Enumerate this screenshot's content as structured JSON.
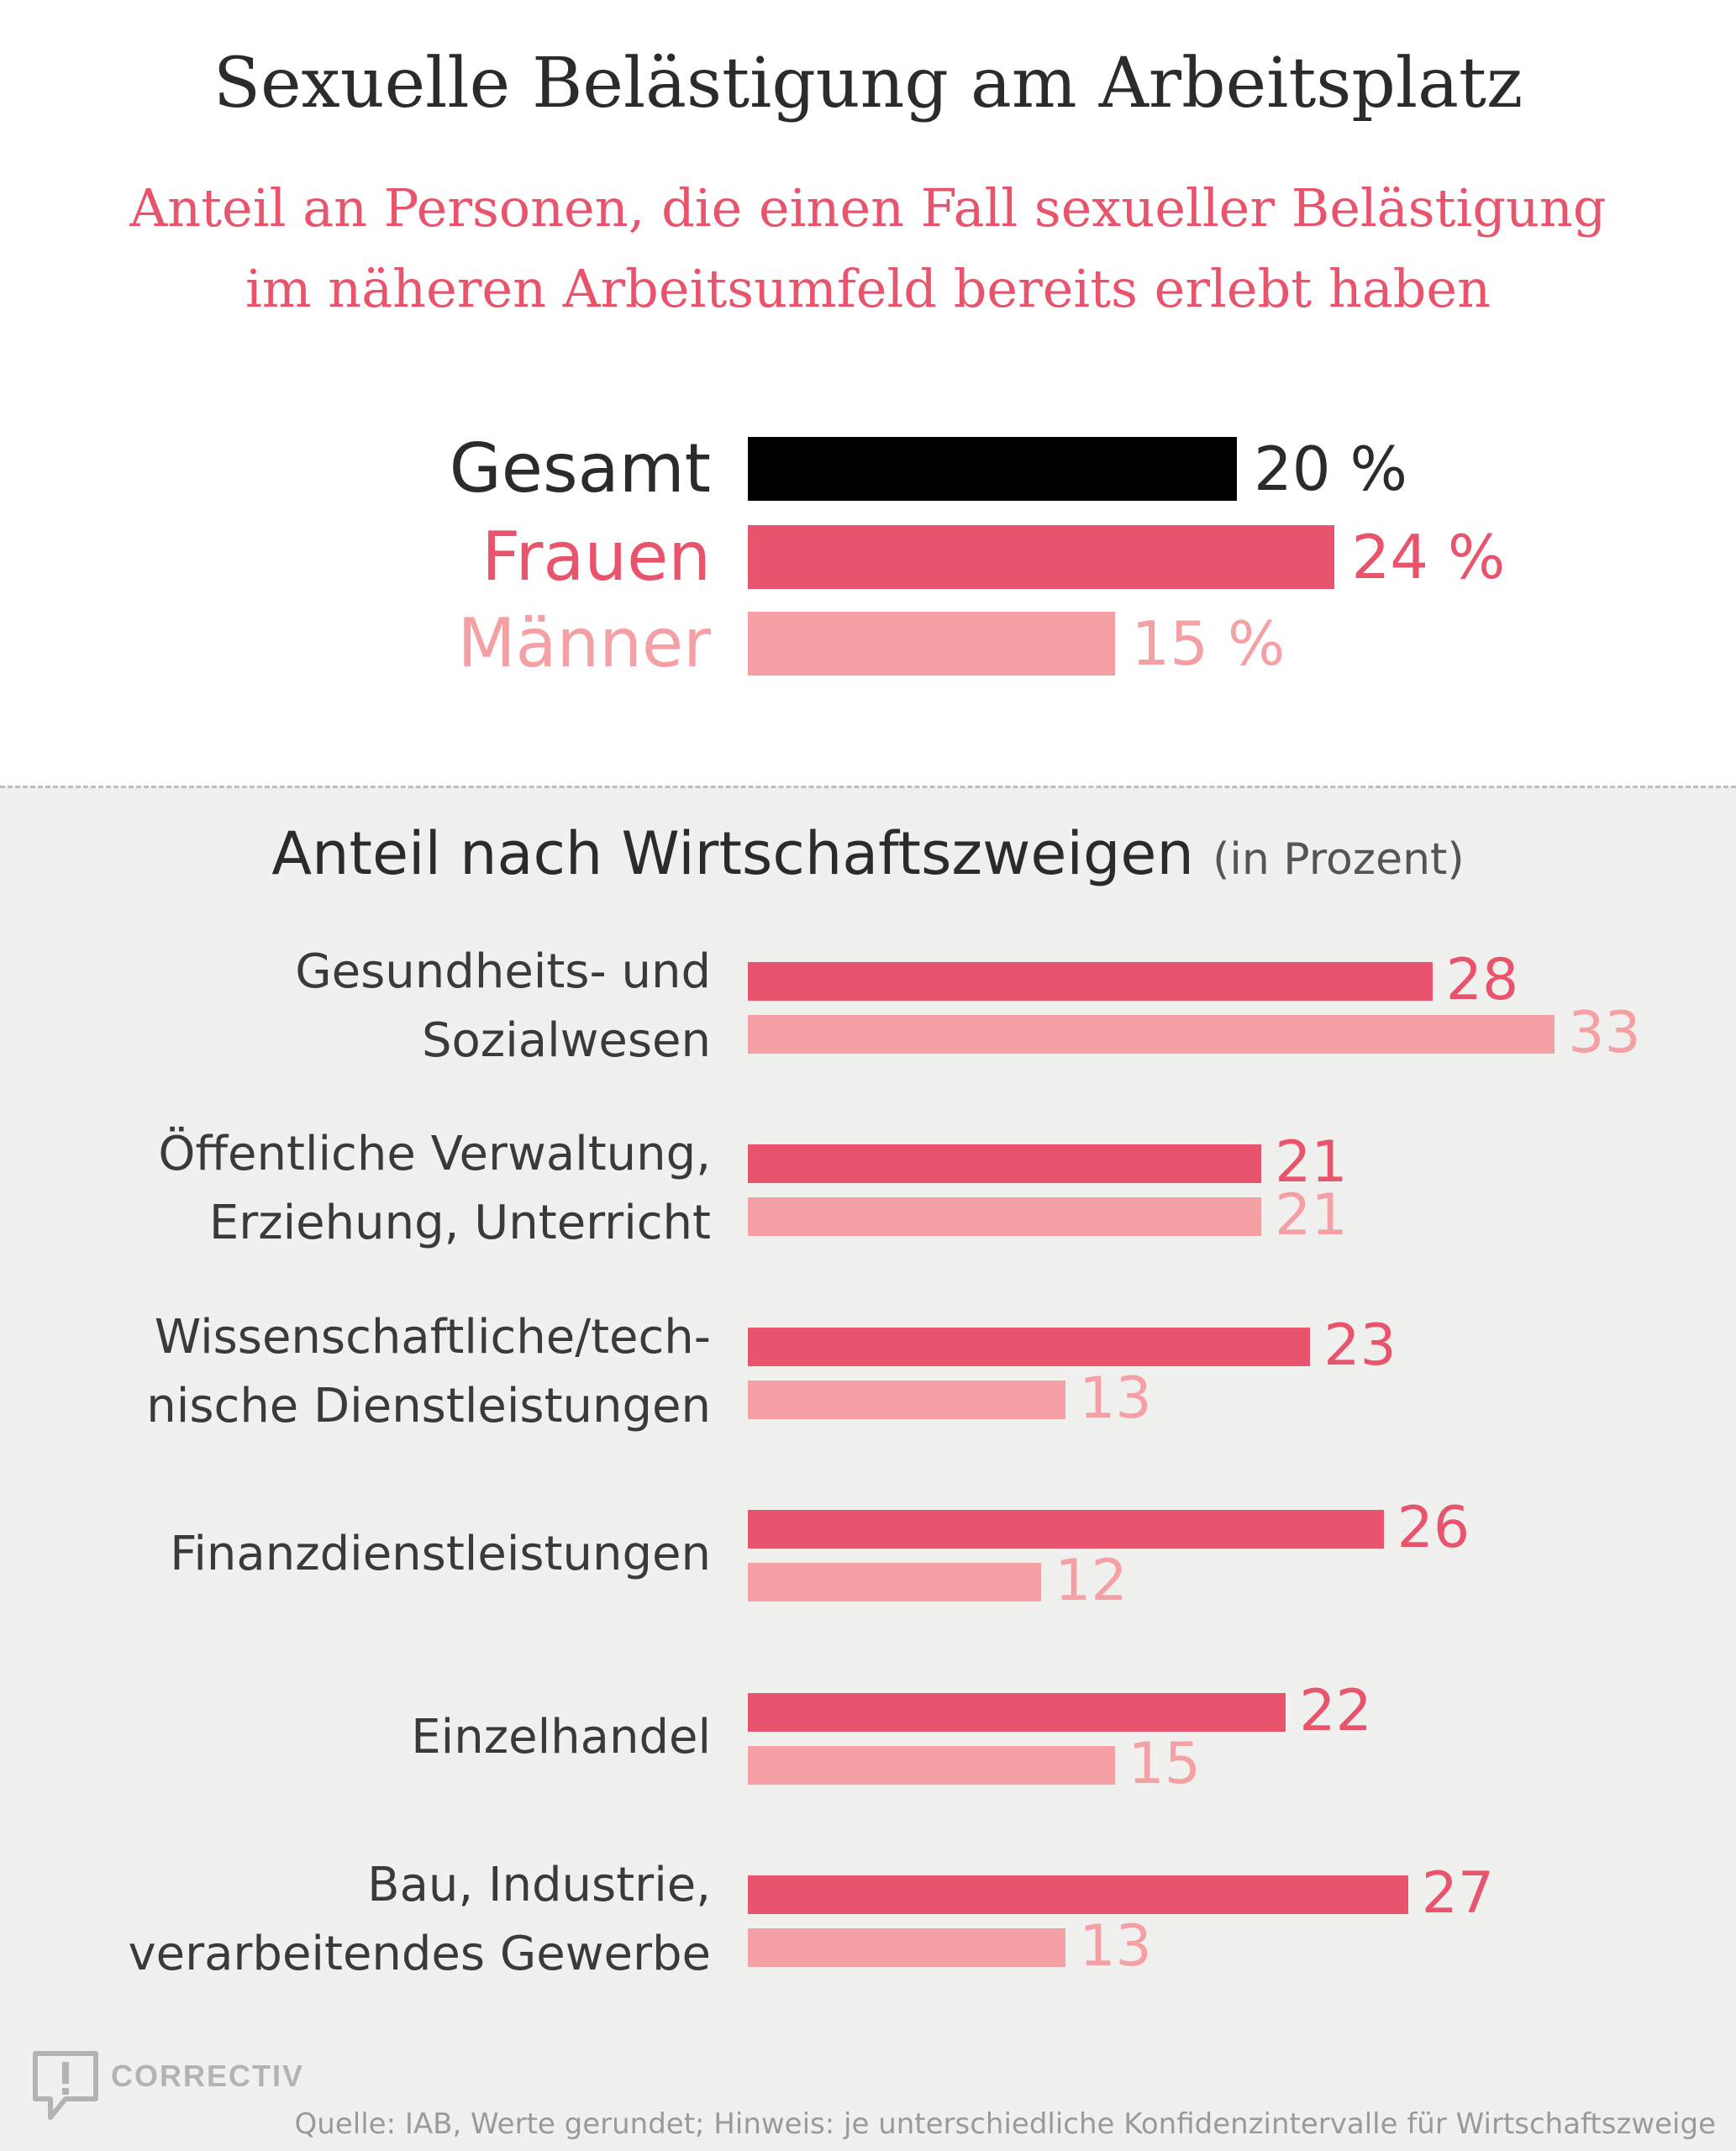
{
  "title": "Sexuelle Belästigung am Arbeitsplatz",
  "subtitle": {
    "line1": "Anteil an Personen, die einen Fall sexueller Belästigung",
    "line2": "im näheren Arbeitsumfeld bereits erlebt haben"
  },
  "colors": {
    "gesamt": "#000000",
    "frauen": "#e8546c",
    "maenner": "#f4a0a4"
  },
  "section": {
    "title": "Anteil nach Wirtschaftszweigen",
    "unit": "(in Prozent)"
  },
  "chart_data": [
    {
      "type": "bar",
      "orientation": "horizontal",
      "categories": [
        "Gesamt",
        "Frauen",
        "Männer"
      ],
      "values": [
        20,
        24,
        15
      ],
      "value_labels": [
        "20 %",
        "24 %",
        "15 %"
      ]
    },
    {
      "type": "bar",
      "orientation": "horizontal",
      "title": "Anteil nach Wirtschaftszweigen",
      "categories": [
        [
          "Gesundheits- und",
          "Sozialwesen"
        ],
        [
          "Öffentliche Verwaltung,",
          "Erziehung, Unterricht"
        ],
        [
          "Wissenschaftliche/tech-",
          "nische Dienstleistungen"
        ],
        [
          "Finanzdienstleistungen"
        ],
        [
          "Einzelhandel"
        ],
        [
          "Bau, Industrie,",
          "verarbeitendes Gewerbe"
        ]
      ],
      "series": [
        {
          "values": [
            28,
            21,
            23,
            26,
            22,
            27
          ]
        },
        {
          "values": [
            33,
            21,
            13,
            12,
            15,
            13
          ]
        }
      ]
    }
  ],
  "footer": {
    "brand": "CORRECTIV",
    "source": "Quelle: IAB, Werte gerundet; Hinweis: je unterschiedliche Konfidenzintervalle für Wirtschaftszweige"
  }
}
